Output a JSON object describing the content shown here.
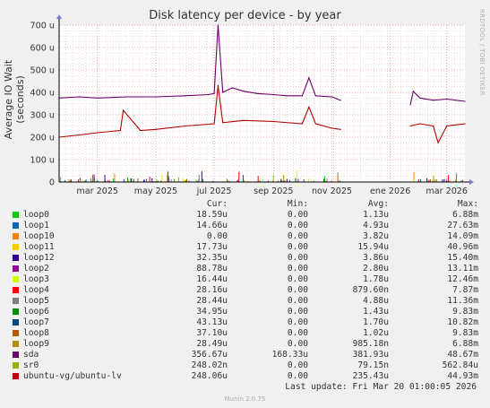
{
  "window": {
    "watermark": "RRDTOOL / TOBI OETIKER",
    "last_update": "Last update: Fri Mar 20 01:00:05 2026",
    "footer": "Munin 2.0.75"
  },
  "legend_headers": {
    "cur": "Cur:",
    "min": "Min:",
    "avg": "Avg:",
    "max": "Max:"
  },
  "legend": [
    {
      "name": "loop0",
      "color": "#00cc00",
      "cur": "18.59u",
      "min": "0.00",
      "avg": "1.13u",
      "max": "6.88m"
    },
    {
      "name": "loop1",
      "color": "#0066b3",
      "cur": "14.66u",
      "min": "0.00",
      "avg": "4.93u",
      "max": "27.63m"
    },
    {
      "name": "loop10",
      "color": "#ff8000",
      "cur": "0.00",
      "min": "0.00",
      "avg": "3.82u",
      "max": "14.09m"
    },
    {
      "name": "loop11",
      "color": "#ffcc00",
      "cur": "17.73u",
      "min": "0.00",
      "avg": "15.94u",
      "max": "40.96m"
    },
    {
      "name": "loop12",
      "color": "#330099",
      "cur": "32.35u",
      "min": "0.00",
      "avg": "3.86u",
      "max": "15.40m"
    },
    {
      "name": "loop2",
      "color": "#990099",
      "cur": "88.78u",
      "min": "0.00",
      "avg": "2.80u",
      "max": "13.11m"
    },
    {
      "name": "loop3",
      "color": "#ccff00",
      "cur": "16.44u",
      "min": "0.00",
      "avg": "1.78u",
      "max": "12.46m"
    },
    {
      "name": "loop4",
      "color": "#ff0000",
      "cur": "28.16u",
      "min": "0.00",
      "avg": "879.60n",
      "max": "7.87m"
    },
    {
      "name": "loop5",
      "color": "#808080",
      "cur": "28.44u",
      "min": "0.00",
      "avg": "4.88u",
      "max": "11.36m"
    },
    {
      "name": "loop6",
      "color": "#008f00",
      "cur": "34.95u",
      "min": "0.00",
      "avg": "1.43u",
      "max": "9.83m"
    },
    {
      "name": "loop7",
      "color": "#00487d",
      "cur": "43.13u",
      "min": "0.00",
      "avg": "1.70u",
      "max": "10.82m"
    },
    {
      "name": "loop8",
      "color": "#b35a00",
      "cur": "37.10u",
      "min": "0.00",
      "avg": "1.02u",
      "max": "9.83m"
    },
    {
      "name": "loop9",
      "color": "#b38f00",
      "cur": "28.49u",
      "min": "0.00",
      "avg": "985.18n",
      "max": "6.88m"
    },
    {
      "name": "sda",
      "color": "#6b006b",
      "cur": "356.67u",
      "min": "168.33u",
      "avg": "381.93u",
      "max": "48.67m"
    },
    {
      "name": "sr0",
      "color": "#8fb300",
      "cur": "248.02n",
      "min": "0.00",
      "avg": "79.15n",
      "max": "562.84u"
    },
    {
      "name": "ubuntu-vg/ubuntu-lv",
      "color": "#b30000",
      "cur": "248.06u",
      "min": "0.00",
      "avg": "235.43u",
      "max": "44.93m"
    }
  ],
  "chart_data": {
    "type": "line",
    "title": "Disk latency per device - by year",
    "xlabel": "",
    "ylabel": "Average IO Wait (seconds)",
    "ylim": [
      0,
      0.0007
    ],
    "y_ticks": [
      {
        "value": 0,
        "label": "0"
      },
      {
        "value": 0.0001,
        "label": "100 u"
      },
      {
        "value": 0.0002,
        "label": "200 u"
      },
      {
        "value": 0.0003,
        "label": "300 u"
      },
      {
        "value": 0.0004,
        "label": "400 u"
      },
      {
        "value": 0.0005,
        "label": "500 u"
      },
      {
        "value": 0.0006,
        "label": "600 u"
      },
      {
        "value": 0.0007,
        "label": "700 u"
      }
    ],
    "x_range": [
      "2025-01-20",
      "2026-03-20"
    ],
    "x_ticks": [
      {
        "date": "2025-03-01",
        "label": "mar 2025"
      },
      {
        "date": "2025-05-01",
        "label": "may 2025"
      },
      {
        "date": "2025-07-01",
        "label": "jul 2025"
      },
      {
        "date": "2025-09-01",
        "label": "sep 2025"
      },
      {
        "date": "2025-11-01",
        "label": "nov 2025"
      },
      {
        "date": "2026-01-01",
        "label": "ene 2026"
      },
      {
        "date": "2026-03-01",
        "label": "mar 2026"
      }
    ],
    "grid": true,
    "series": [
      {
        "name": "sda",
        "color": "#6b006b",
        "segments": [
          {
            "x": [
              "2025-01-20",
              "2025-02-10",
              "2025-03-01",
              "2025-04-01",
              "2025-05-01",
              "2025-06-01",
              "2025-06-25",
              "2025-07-01",
              "2025-07-05",
              "2025-07-10",
              "2025-07-20",
              "2025-08-01",
              "2025-08-15",
              "2025-09-01",
              "2025-09-15",
              "2025-10-01",
              "2025-10-08",
              "2025-10-15",
              "2025-11-01",
              "2025-11-10"
            ],
            "y": [
              0.000375,
              0.00038,
              0.000375,
              0.00038,
              0.00038,
              0.000385,
              0.00039,
              0.000395,
              0.0007,
              0.0004,
              0.00042,
              0.000405,
              0.000395,
              0.00039,
              0.000385,
              0.000385,
              0.000465,
              0.000385,
              0.00038,
              0.000365
            ]
          },
          {
            "x": [
              "2026-01-22",
              "2026-01-25",
              "2026-02-01",
              "2026-02-15",
              "2026-03-01",
              "2026-03-20"
            ],
            "y": [
              0.000345,
              0.000405,
              0.000375,
              0.000365,
              0.00037,
              0.00036
            ]
          }
        ]
      },
      {
        "name": "ubuntu-vg/ubuntu-lv",
        "color": "#b30000",
        "segments": [
          {
            "x": [
              "2025-01-20",
              "2025-02-10",
              "2025-03-01",
              "2025-03-25",
              "2025-03-28",
              "2025-04-15",
              "2025-05-01",
              "2025-06-01",
              "2025-07-01",
              "2025-07-05",
              "2025-07-10",
              "2025-08-01",
              "2025-09-01",
              "2025-10-01",
              "2025-10-08",
              "2025-10-15",
              "2025-11-01",
              "2025-11-10"
            ],
            "y": [
              0.0002,
              0.00021,
              0.00022,
              0.00023,
              0.00032,
              0.00023,
              0.000235,
              0.00025,
              0.00026,
              0.00043,
              0.000265,
              0.000275,
              0.00027,
              0.00026,
              0.000335,
              0.00026,
              0.00024,
              0.000235
            ]
          },
          {
            "x": [
              "2026-01-22",
              "2026-02-01",
              "2026-02-15",
              "2026-02-20",
              "2026-03-01",
              "2026-03-20"
            ],
            "y": [
              0.00025,
              0.00026,
              0.00025,
              0.000175,
              0.00025,
              0.00026
            ]
          }
        ]
      }
    ]
  }
}
